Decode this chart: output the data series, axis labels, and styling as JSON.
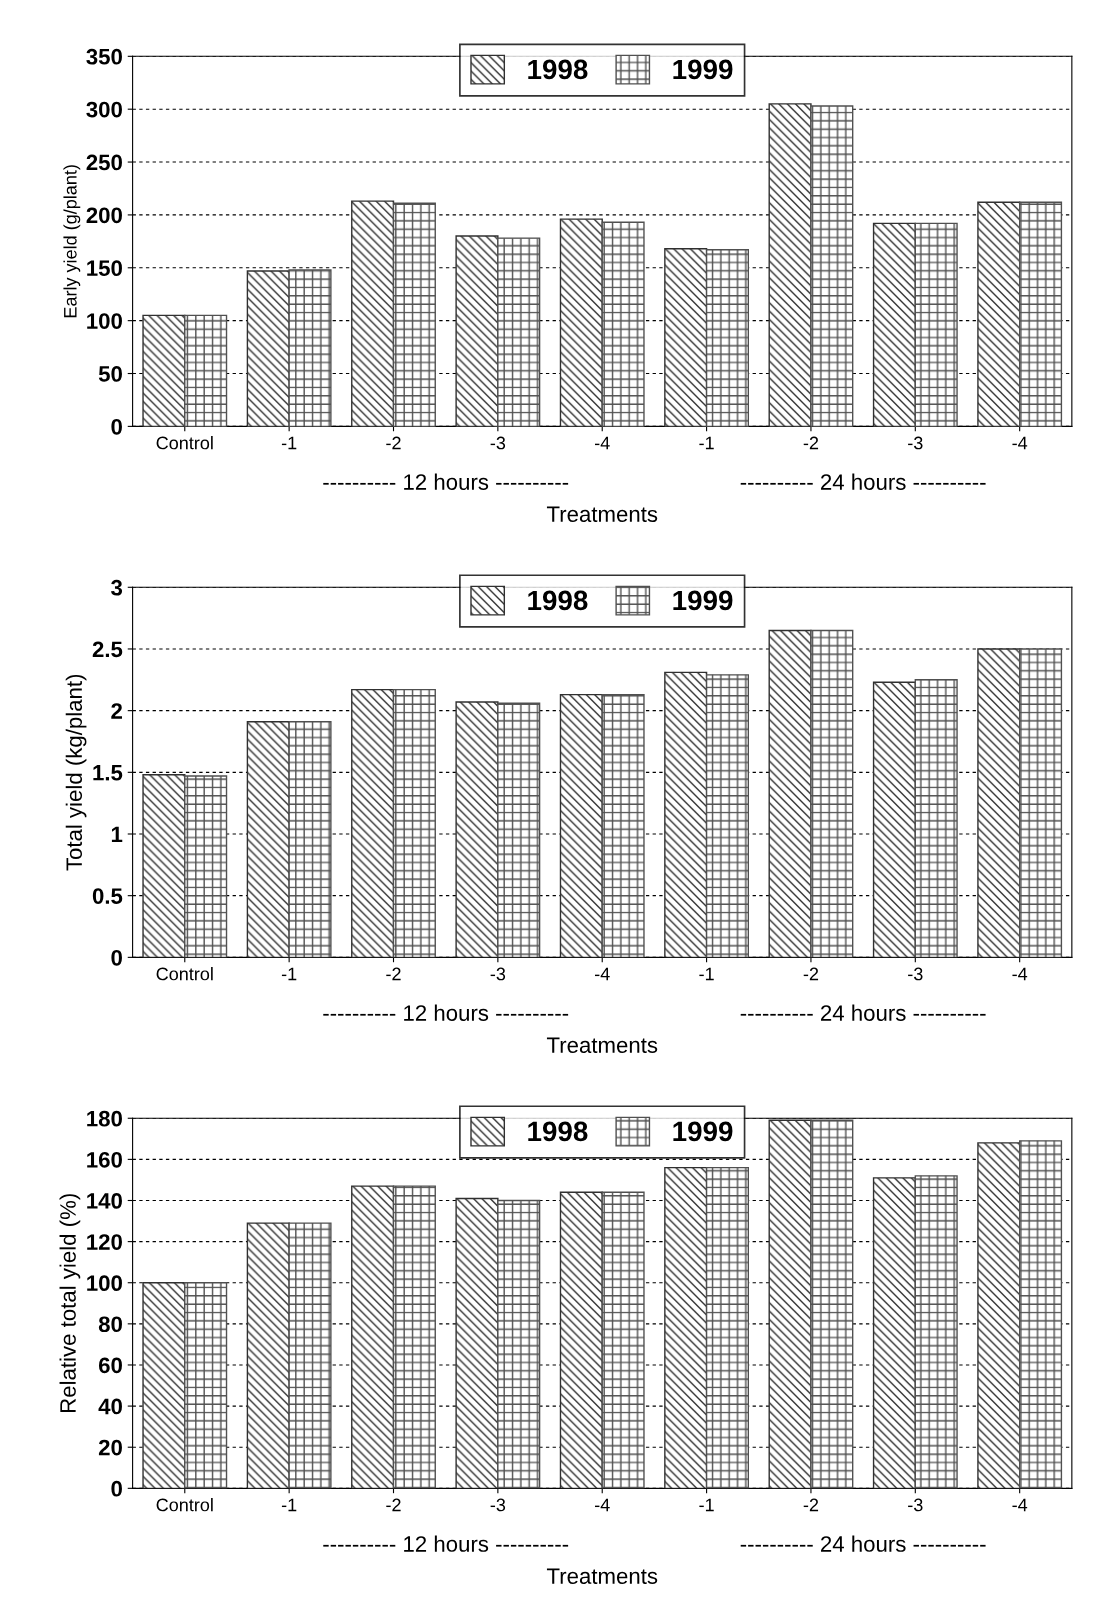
{
  "chart_data": [
    {
      "type": "bar",
      "xlabel": "Treatments",
      "ylabel": "Early yield (g/plant)",
      "categories": [
        "Control",
        "-1",
        "-2",
        "-3",
        "-4",
        "-1",
        "-2",
        "-3",
        "-4"
      ],
      "series": [
        {
          "name": "1998",
          "color": "#303030",
          "values": [
            105,
            147,
            213,
            180,
            196,
            168,
            305,
            192,
            212
          ]
        },
        {
          "name": "1999",
          "color": "#505050",
          "values": [
            105,
            148,
            211,
            178,
            193,
            167,
            303,
            192,
            212
          ]
        }
      ],
      "ylim": [
        0,
        350
      ],
      "yticks": [
        0,
        50,
        100,
        150,
        200,
        250,
        300,
        350
      ],
      "grid": "y",
      "legend": "top",
      "annotations": [
        "---------- 12 hours ----------",
        "---------- 24 hours ----------"
      ]
    },
    {
      "type": "bar",
      "xlabel": "Treatments",
      "ylabel": "Total yield (kg/plant)",
      "categories": [
        "Control",
        "-1",
        "-2",
        "-3",
        "-4",
        "-1",
        "-2",
        "-3",
        "-4"
      ],
      "series": [
        {
          "name": "1998",
          "color": "#303030",
          "values": [
            1.48,
            1.91,
            2.17,
            2.07,
            2.13,
            2.31,
            2.65,
            2.23,
            2.5
          ]
        },
        {
          "name": "1999",
          "color": "#505050",
          "values": [
            1.47,
            1.91,
            2.17,
            2.06,
            2.13,
            2.29,
            2.65,
            2.25,
            2.5
          ]
        }
      ],
      "ylim": [
        0,
        3
      ],
      "yticks": [
        0,
        0.5,
        1,
        1.5,
        2,
        2.5,
        3
      ],
      "grid": "y",
      "legend": "top",
      "annotations": [
        "---------- 12 hours ----------",
        "---------- 24 hours ----------"
      ]
    },
    {
      "type": "bar",
      "xlabel": "Treatments",
      "ylabel": "Relative total yield (%)",
      "categories": [
        "Control",
        "-1",
        "-2",
        "-3",
        "-4",
        "-1",
        "-2",
        "-3",
        "-4"
      ],
      "series": [
        {
          "name": "1998",
          "color": "#303030",
          "values": [
            100,
            129,
            147,
            141,
            144,
            156,
            179,
            151,
            168
          ]
        },
        {
          "name": "1999",
          "color": "#505050",
          "values": [
            100,
            129,
            147,
            140,
            144,
            156,
            179,
            152,
            169
          ]
        }
      ],
      "ylim": [
        0,
        180
      ],
      "yticks": [
        0,
        20,
        40,
        60,
        80,
        100,
        120,
        140,
        160,
        180
      ],
      "grid": "y",
      "legend": "top",
      "annotations": [
        "---------- 12 hours ----------",
        "---------- 24 hours ----------"
      ]
    }
  ]
}
